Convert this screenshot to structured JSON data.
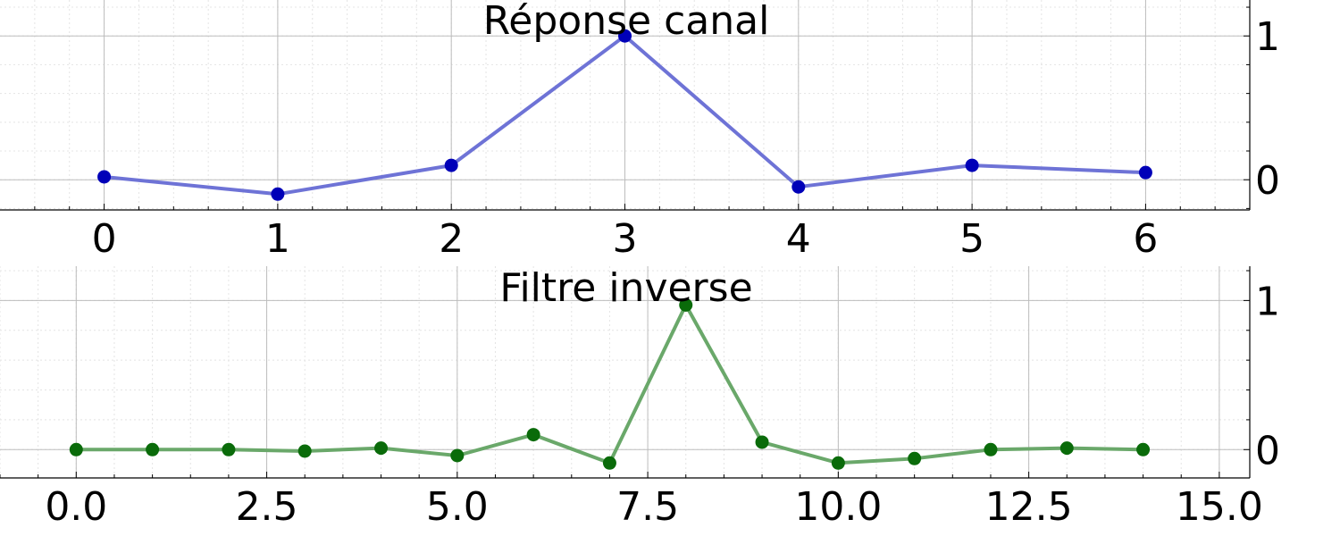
{
  "chart_data": [
    {
      "type": "line",
      "title": "Réponse canal",
      "xlabel": "",
      "ylabel": "",
      "xlim": [
        -0.6,
        6.6
      ],
      "ylim": [
        -0.21,
        1.25
      ],
      "x_ticks": [
        0,
        1,
        2,
        3,
        4,
        5,
        6
      ],
      "x_tick_labels": [
        "0",
        "1",
        "2",
        "3",
        "4",
        "5",
        "6"
      ],
      "y_ticks": [
        0,
        1
      ],
      "y_tick_labels": [
        "0",
        "1"
      ],
      "y_axis_side": "right",
      "grid": true,
      "minor_grid": true,
      "series": [
        {
          "x": [
            0,
            1,
            2,
            3,
            4,
            5,
            6
          ],
          "y": [
            0.02,
            -0.1,
            0.1,
            1.0,
            -0.05,
            0.1,
            0.05
          ],
          "line_color": "#6e73d6",
          "marker_color": "#0000b8"
        }
      ]
    },
    {
      "type": "line",
      "title": "Filtre inverse",
      "xlabel": "",
      "ylabel": "",
      "xlim": [
        -1.0,
        15.4
      ],
      "ylim": [
        -0.19,
        1.23
      ],
      "x_ticks": [
        0,
        2.5,
        5,
        7.5,
        10,
        12.5,
        15
      ],
      "x_tick_labels": [
        "0.0",
        "2.5",
        "5.0",
        "7.5",
        "10.0",
        "12.5",
        "15.0"
      ],
      "y_ticks": [
        0,
        1
      ],
      "y_tick_labels": [
        "0",
        "1"
      ],
      "y_axis_side": "right",
      "grid": true,
      "minor_grid": true,
      "series": [
        {
          "x": [
            0,
            1,
            2,
            3,
            4,
            5,
            6,
            7,
            8,
            9,
            10,
            11,
            12,
            13,
            14
          ],
          "y": [
            0.0,
            0.0,
            0.0,
            -0.01,
            0.01,
            -0.04,
            0.1,
            -0.09,
            0.97,
            0.05,
            -0.09,
            -0.06,
            0.0,
            0.01,
            0.0
          ],
          "line_color": "#6aa86a",
          "marker_color": "#0a6b0a"
        }
      ]
    }
  ]
}
